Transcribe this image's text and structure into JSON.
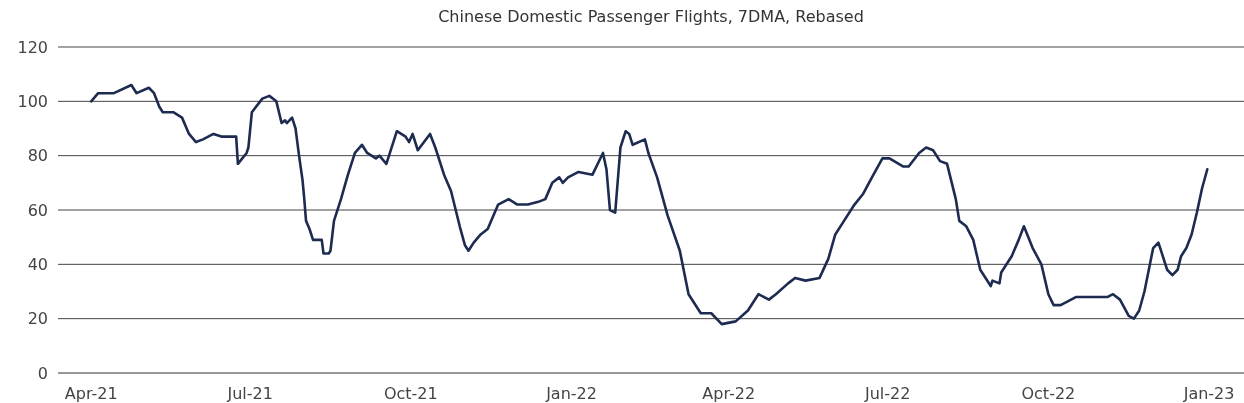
{
  "chart_data": {
    "type": "line",
    "title": "Chinese Domestic Passenger Flights, 7DMA, Rebased",
    "x": [
      "2021-04-01",
      "2021-04-05",
      "2021-04-14",
      "2021-04-24",
      "2021-04-27",
      "2021-05-04",
      "2021-05-07",
      "2021-05-10",
      "2021-05-12",
      "2021-05-18",
      "2021-05-23",
      "2021-05-27",
      "2021-05-31",
      "2021-06-04",
      "2021-06-10",
      "2021-06-15",
      "2021-06-23",
      "2021-06-24",
      "2021-06-29",
      "2021-06-30",
      "2021-07-02",
      "2021-07-08",
      "2021-07-12",
      "2021-07-16",
      "2021-07-19",
      "2021-07-21",
      "2021-07-22",
      "2021-07-25",
      "2021-07-27",
      "2021-07-29",
      "2021-07-31",
      "2021-08-01",
      "2021-08-02",
      "2021-08-04",
      "2021-08-06",
      "2021-08-10",
      "2021-08-11",
      "2021-08-12",
      "2021-08-15",
      "2021-08-16",
      "2021-08-18",
      "2021-08-22",
      "2021-08-26",
      "2021-08-30",
      "2021-09-03",
      "2021-09-06",
      "2021-09-11",
      "2021-09-13",
      "2021-09-17",
      "2021-09-23",
      "2021-09-28",
      "2021-09-30",
      "2021-10-02",
      "2021-10-05",
      "2021-10-12",
      "2021-10-15",
      "2021-10-20",
      "2021-10-24",
      "2021-10-29",
      "2021-11-01",
      "2021-11-03",
      "2021-11-06",
      "2021-11-10",
      "2021-11-14",
      "2021-11-20",
      "2021-11-26",
      "2021-12-01",
      "2021-12-07",
      "2021-12-13",
      "2021-12-17",
      "2021-12-21",
      "2021-12-25",
      "2021-12-27",
      "2021-12-30",
      "2022-01-05",
      "2022-01-13",
      "2022-01-19",
      "2022-01-21",
      "2022-01-23",
      "2022-01-26",
      "2022-01-27",
      "2022-01-29",
      "2022-02-01",
      "2022-02-03",
      "2022-02-05",
      "2022-02-12",
      "2022-02-14",
      "2022-02-19",
      "2022-02-25",
      "2022-03-04",
      "2022-03-09",
      "2022-03-16",
      "2022-03-22",
      "2022-03-28",
      "2022-04-05",
      "2022-04-12",
      "2022-04-18",
      "2022-04-24",
      "2022-04-28",
      "2022-05-05",
      "2022-05-09",
      "2022-05-15",
      "2022-05-23",
      "2022-05-28",
      "2022-06-01",
      "2022-06-06",
      "2022-06-12",
      "2022-06-17",
      "2022-06-22",
      "2022-06-28",
      "2022-07-02",
      "2022-07-10",
      "2022-07-13",
      "2022-07-19",
      "2022-07-23",
      "2022-07-27",
      "2022-07-31",
      "2022-08-04",
      "2022-08-09",
      "2022-08-11",
      "2022-08-15",
      "2022-08-19",
      "2022-08-23",
      "2022-08-29",
      "2022-08-30",
      "2022-09-03",
      "2022-09-04",
      "2022-09-10",
      "2022-09-14",
      "2022-09-17",
      "2022-09-22",
      "2022-09-27",
      "2022-10-01",
      "2022-10-04",
      "2022-10-08",
      "2022-10-17",
      "2022-10-22",
      "2022-10-29",
      "2022-11-04",
      "2022-11-07",
      "2022-11-11",
      "2022-11-16",
      "2022-11-19",
      "2022-11-22",
      "2022-11-25",
      "2022-11-30",
      "2022-12-03",
      "2022-12-05",
      "2022-12-08",
      "2022-12-11",
      "2022-12-14",
      "2022-12-16",
      "2022-12-19",
      "2022-12-22",
      "2022-12-25",
      "2022-12-28",
      "2022-12-31"
    ],
    "series": [
      {
        "color": "#1c2b4f",
        "values": [
          100,
          103,
          103,
          106,
          103,
          105,
          103,
          98,
          96,
          96,
          94,
          88,
          85,
          86,
          88,
          87,
          87,
          77,
          81,
          83,
          96,
          101,
          102,
          100,
          92,
          93,
          92,
          94,
          90,
          80,
          71,
          64,
          56,
          53,
          49,
          49,
          49,
          44,
          44,
          45,
          56,
          64,
          73,
          81,
          84,
          81,
          79,
          80,
          77,
          89,
          87,
          85,
          88,
          82,
          88,
          83,
          73,
          67,
          54,
          47,
          45,
          48,
          51,
          53,
          62,
          64,
          62,
          62,
          63,
          64,
          70,
          72,
          70,
          72,
          74,
          73,
          81,
          75,
          60,
          59,
          67,
          83,
          89,
          88,
          84,
          86,
          81,
          72,
          58,
          45,
          29,
          22,
          22,
          18,
          19,
          23,
          29,
          27,
          29,
          33,
          35,
          34,
          35,
          42,
          51,
          56,
          62,
          66,
          72,
          79,
          79,
          76,
          76,
          81,
          83,
          82,
          78,
          77,
          64,
          56,
          54,
          49,
          38,
          32,
          34,
          33,
          37,
          43,
          49,
          54,
          46,
          40,
          29,
          25,
          25,
          28,
          28,
          28,
          28,
          29,
          27,
          21,
          20,
          23,
          30,
          46,
          48,
          44,
          38,
          36,
          38,
          43,
          46,
          51,
          59,
          68,
          75
        ]
      }
    ],
    "xlim": [
      "2021-03-13",
      "2023-01-21"
    ],
    "xticks": [
      {
        "value": "2021-04-01",
        "label": "Apr-21"
      },
      {
        "value": "2021-07-01",
        "label": "Jul-21"
      },
      {
        "value": "2021-10-01",
        "label": "Oct-21"
      },
      {
        "value": "2022-01-01",
        "label": "Jan-22"
      },
      {
        "value": "2022-04-01",
        "label": "Apr-22"
      },
      {
        "value": "2022-07-01",
        "label": "Jul-22"
      },
      {
        "value": "2022-10-01",
        "label": "Oct-22"
      },
      {
        "value": "2023-01-01",
        "label": "Jan-23"
      }
    ],
    "ylim": [
      0,
      120
    ],
    "yticks": [
      0,
      20,
      40,
      60,
      80,
      100,
      120
    ],
    "grid": "y",
    "marker": "none",
    "line_style": "solid"
  }
}
